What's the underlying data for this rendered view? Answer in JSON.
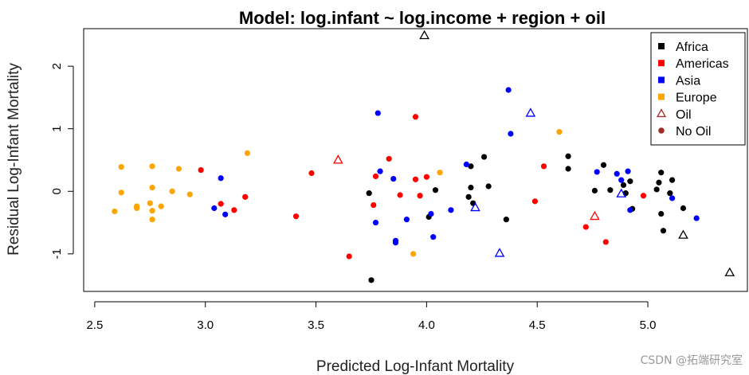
{
  "watermark": "CSDN @拓端研究室",
  "chart_data": {
    "type": "scatter",
    "title": "Model: log.infant ~ log.income + region + oil",
    "xlabel": "Predicted Log-Infant Mortality",
    "ylabel": "Residual Log-Infant Mortality",
    "xlim": [
      2.45,
      5.45
    ],
    "ylim": [
      -1.6,
      2.6
    ],
    "x_ticks": [
      "2.5",
      "3.0",
      "3.5",
      "4.0",
      "4.5",
      "5.0"
    ],
    "x_tick_values": [
      2.5,
      3.0,
      3.5,
      4.0,
      4.5,
      5.0
    ],
    "y_ticks": [
      "-1",
      "0",
      "1",
      "2"
    ],
    "y_tick_values": [
      -1,
      0,
      1,
      2
    ],
    "grid": false,
    "legend_position": "top-right",
    "legend": [
      {
        "label": "Africa",
        "color": "#000000",
        "marker": "square"
      },
      {
        "label": "Americas",
        "color": "#ff0000",
        "marker": "square"
      },
      {
        "label": "Asia",
        "color": "#0000ff",
        "marker": "square"
      },
      {
        "label": "Europe",
        "color": "#ffa500",
        "marker": "square"
      },
      {
        "label": "Oil",
        "color": "#a52a2a",
        "marker": "triangle"
      },
      {
        "label": "No Oil",
        "color": "#a52a2a",
        "marker": "circle"
      }
    ],
    "region_colors": {
      "Africa": "#000000",
      "Americas": "#ff0000",
      "Asia": "#0000ff",
      "Europe": "#ffa500"
    },
    "series": [
      {
        "name": "Africa",
        "oil": false,
        "points": [
          [
            3.74,
            -0.03
          ],
          [
            3.75,
            -1.42
          ],
          [
            4.01,
            -0.41
          ],
          [
            4.04,
            0.02
          ],
          [
            4.19,
            -0.09
          ],
          [
            4.2,
            0.4
          ],
          [
            4.2,
            0.06
          ],
          [
            4.21,
            -0.19
          ],
          [
            4.26,
            0.55
          ],
          [
            4.28,
            0.08
          ],
          [
            4.36,
            -0.45
          ],
          [
            4.64,
            0.56
          ],
          [
            4.64,
            0.36
          ],
          [
            4.76,
            0.01
          ],
          [
            4.8,
            0.42
          ],
          [
            4.83,
            0.02
          ],
          [
            4.89,
            0.1
          ],
          [
            4.9,
            -0.03
          ],
          [
            4.92,
            0.16
          ],
          [
            4.93,
            -0.28
          ],
          [
            5.04,
            0.03
          ],
          [
            5.05,
            0.14
          ],
          [
            5.06,
            0.3
          ],
          [
            5.06,
            -0.36
          ],
          [
            5.07,
            -0.63
          ],
          [
            5.1,
            -0.03
          ],
          [
            5.11,
            0.18
          ],
          [
            5.16,
            -0.27
          ]
        ]
      },
      {
        "name": "Africa",
        "oil": true,
        "points": [
          [
            3.99,
            2.49
          ],
          [
            5.16,
            -0.7
          ],
          [
            5.37,
            -1.3
          ]
        ]
      },
      {
        "name": "Americas",
        "oil": false,
        "points": [
          [
            2.98,
            0.34
          ],
          [
            3.07,
            -0.2
          ],
          [
            3.13,
            -0.3
          ],
          [
            3.18,
            -0.09
          ],
          [
            3.41,
            -0.4
          ],
          [
            3.48,
            0.29
          ],
          [
            3.65,
            -1.04
          ],
          [
            3.76,
            -0.22
          ],
          [
            3.77,
            0.24
          ],
          [
            3.83,
            0.52
          ],
          [
            3.88,
            -0.06
          ],
          [
            3.95,
            0.19
          ],
          [
            3.95,
            1.19
          ],
          [
            3.97,
            -0.07
          ],
          [
            4.0,
            0.23
          ],
          [
            4.53,
            0.4
          ],
          [
            4.49,
            -0.16
          ],
          [
            4.72,
            -0.57
          ],
          [
            4.81,
            -0.81
          ],
          [
            4.98,
            -0.07
          ]
        ]
      },
      {
        "name": "Americas",
        "oil": true,
        "points": [
          [
            3.6,
            0.5
          ],
          [
            4.76,
            -0.4
          ]
        ]
      },
      {
        "name": "Asia",
        "oil": false,
        "points": [
          [
            3.04,
            -0.27
          ],
          [
            3.07,
            0.21
          ],
          [
            3.09,
            -0.37
          ],
          [
            3.77,
            -0.5
          ],
          [
            3.78,
            1.25
          ],
          [
            3.79,
            0.32
          ],
          [
            3.85,
            0.2
          ],
          [
            3.86,
            -0.79
          ],
          [
            3.86,
            -0.82
          ],
          [
            3.91,
            -0.45
          ],
          [
            4.02,
            -0.36
          ],
          [
            4.03,
            -0.73
          ],
          [
            4.11,
            -0.3
          ],
          [
            4.18,
            0.43
          ],
          [
            4.37,
            1.62
          ],
          [
            4.38,
            0.92
          ],
          [
            4.77,
            0.31
          ],
          [
            4.86,
            0.28
          ],
          [
            4.88,
            0.18
          ],
          [
            4.91,
            0.32
          ],
          [
            4.92,
            -0.3
          ],
          [
            5.11,
            -0.11
          ],
          [
            5.22,
            -0.43
          ]
        ]
      },
      {
        "name": "Asia",
        "oil": true,
        "points": [
          [
            4.22,
            -0.26
          ],
          [
            4.33,
            -0.99
          ],
          [
            4.47,
            1.25
          ],
          [
            4.88,
            -0.04
          ]
        ]
      },
      {
        "name": "Europe",
        "oil": false,
        "points": [
          [
            2.59,
            -0.32
          ],
          [
            2.62,
            0.39
          ],
          [
            2.62,
            -0.02
          ],
          [
            2.69,
            -0.24
          ],
          [
            2.69,
            -0.27
          ],
          [
            2.75,
            -0.19
          ],
          [
            2.76,
            0.4
          ],
          [
            2.76,
            0.06
          ],
          [
            2.76,
            -0.31
          ],
          [
            2.76,
            -0.45
          ],
          [
            2.8,
            -0.24
          ],
          [
            2.85,
            0.0
          ],
          [
            2.88,
            0.36
          ],
          [
            2.93,
            -0.05
          ],
          [
            3.19,
            0.61
          ],
          [
            3.94,
            -1.0
          ],
          [
            4.06,
            0.3
          ],
          [
            4.6,
            0.95
          ]
        ]
      }
    ]
  }
}
